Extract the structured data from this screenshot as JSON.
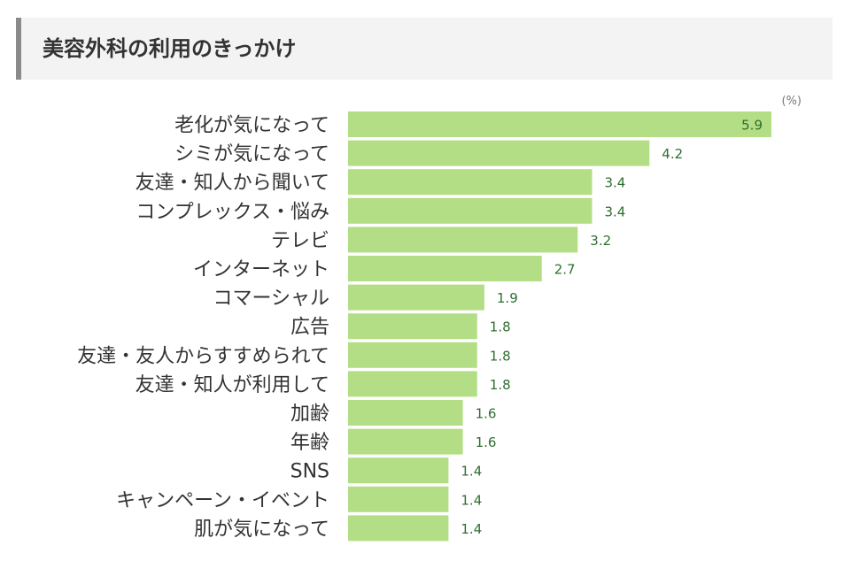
{
  "header": {
    "title": "美容外科の利用のきっかけ"
  },
  "chart_data": {
    "type": "bar",
    "orientation": "horizontal",
    "title": "美容外科の利用のきっかけ",
    "unit": "(%)",
    "categories": [
      "老化が気になって",
      "シミが気になって",
      "友達・知人から聞いて",
      "コンプレックス・悩み",
      "テレビ",
      "インターネット",
      "コマーシャル",
      "広告",
      "友達・友人からすすめられて",
      "友達・知人が利用して",
      "加齢",
      "年齢",
      "SNS",
      "キャンペーン・イベント",
      "肌が気になって"
    ],
    "values": [
      5.9,
      4.2,
      3.4,
      3.4,
      3.2,
      2.7,
      1.9,
      1.8,
      1.8,
      1.8,
      1.6,
      1.6,
      1.4,
      1.4,
      1.4
    ],
    "value_labels": [
      "5.9",
      "4.2",
      "3.4",
      "3.4",
      "3.2",
      "2.7",
      "1.9",
      "1.8",
      "1.8",
      "1.8",
      "1.6",
      "1.6",
      "1.4",
      "1.4",
      "1.4"
    ],
    "xlim": [
      0,
      6.3
    ],
    "grid": false,
    "legend": "none",
    "bar_color": "#b3de86",
    "label_color": "#2f6e2f"
  }
}
